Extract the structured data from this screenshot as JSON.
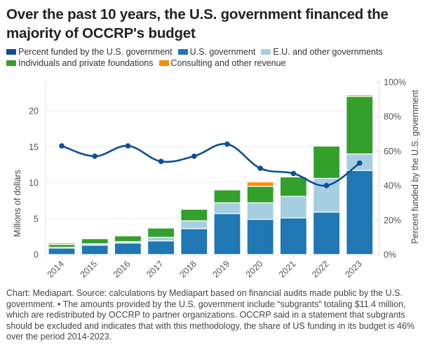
{
  "title": "Over the past 10 years, the U.S. government financed the majority of OCCRP's budget",
  "legend": [
    {
      "label": "Percent funded by the U.S. government",
      "color": "#0b4f97",
      "key": "pct"
    },
    {
      "label": "U.S. government",
      "color": "#1f77b4",
      "key": "us"
    },
    {
      "label": "E.U. and other governments",
      "color": "#a6cee3",
      "key": "eu"
    },
    {
      "label": "Individuals and private foundations",
      "color": "#33a02c",
      "key": "ind"
    },
    {
      "label": "Consulting and other revenue",
      "color": "#ff8c00",
      "key": "cons"
    }
  ],
  "footer": "Chart: Mediapart. Source: calculations by Mediapart based on financial audits made public by the U.S. government. • The amounts provided by the U.S. government include “subgrants” totaling $11.4 million, which are redistributed by OCCRP to partner organizations. OCCRP said in a statement that subgrants should be excluded and indicates that with this methodology, the share of US funding in its budget is 46% over the period 2014-2023.",
  "chart_data": {
    "type": "bar",
    "stacked": true,
    "title": "Over the past 10 years, the U.S. government financed the majority of OCCRP's budget",
    "categories": [
      "2014",
      "2015",
      "2016",
      "2017",
      "2018",
      "2019",
      "2020",
      "2021",
      "2022",
      "2023"
    ],
    "series": [
      {
        "name": "U.S. government",
        "key": "us",
        "color": "#1f77b4",
        "values": [
          0.9,
          1.3,
          1.6,
          1.9,
          3.6,
          5.7,
          4.9,
          5.1,
          5.9,
          11.7
        ]
      },
      {
        "name": "E.U. and other governments",
        "key": "eu",
        "color": "#a6cee3",
        "values": [
          0.1,
          0.2,
          0.2,
          0.5,
          1.1,
          1.5,
          2.3,
          3.0,
          4.7,
          2.3
        ]
      },
      {
        "name": "Individuals and private foundations",
        "key": "ind",
        "color": "#33a02c",
        "values": [
          0.4,
          0.7,
          0.8,
          1.3,
          1.6,
          1.8,
          2.3,
          2.7,
          4.5,
          8.0
        ]
      },
      {
        "name": "Consulting and other revenue",
        "key": "cons",
        "color": "#ff8c00",
        "values": [
          0.2,
          0.1,
          0.05,
          0.05,
          0.05,
          0.05,
          0.6,
          0.05,
          0.05,
          0.2
        ]
      }
    ],
    "line_series": {
      "name": "Percent funded by the U.S. government",
      "key": "pct",
      "color": "#0b4f97",
      "axis": "right",
      "values": [
        63,
        57,
        63,
        54,
        57,
        64,
        50,
        47,
        40,
        53
      ]
    },
    "xlabel": "",
    "ylabel": "Millions of dollars",
    "ylabel_right": "Percent funded by the U.S. government",
    "ylim": [
      0,
      24
    ],
    "yticks": [
      0,
      5,
      10,
      15,
      20
    ],
    "ylim_right": [
      0,
      100
    ],
    "yticks_right": [
      "0%",
      "20%",
      "40%",
      "60%",
      "80%",
      "100%"
    ],
    "grid": true,
    "legend_position": "top-left"
  }
}
